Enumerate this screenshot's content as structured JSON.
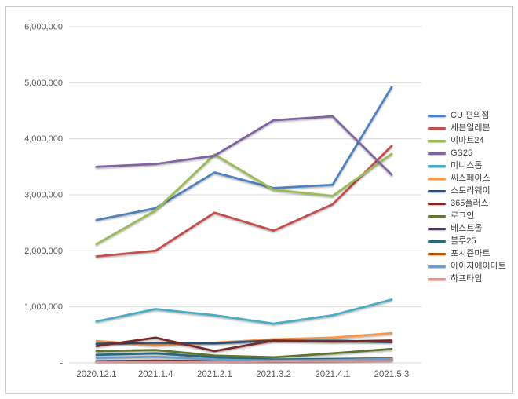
{
  "chart_data": {
    "type": "line",
    "title": "",
    "xlabel": "",
    "ylabel": "",
    "x_categories": [
      "2020.12.1",
      "2021.1.4",
      "2021.2.1",
      "2021.3.2",
      "2021.4.1",
      "2021.5.3"
    ],
    "y_tick_labels": [
      "-",
      "1,000,000",
      "2,000,000",
      "3,000,000",
      "4,000,000",
      "5,000,000",
      "6,000,000"
    ],
    "ylim": [
      0,
      6000000
    ],
    "y_tick_step": 1000000,
    "grid": "horizontal",
    "legend_position": "right",
    "series": [
      {
        "name": "CU 편의점",
        "color": "#4F81BD",
        "values": [
          2550000,
          2760000,
          3400000,
          3120000,
          3180000,
          4920000
        ]
      },
      {
        "name": "세븐일레븐",
        "color": "#C0504D",
        "values": [
          1900000,
          2000000,
          2680000,
          2360000,
          2830000,
          3870000
        ]
      },
      {
        "name": "이마트24",
        "color": "#9BBB59",
        "values": [
          2120000,
          2720000,
          3720000,
          3090000,
          2980000,
          3730000
        ]
      },
      {
        "name": "GS25",
        "color": "#8064A2",
        "values": [
          3500000,
          3550000,
          3700000,
          4330000,
          4400000,
          3360000
        ]
      },
      {
        "name": "미니스톱",
        "color": "#4BACC6",
        "values": [
          740000,
          960000,
          850000,
          700000,
          850000,
          1130000
        ]
      },
      {
        "name": "씨스페이스",
        "color": "#F79646",
        "values": [
          390000,
          320000,
          360000,
          420000,
          450000,
          530000
        ]
      },
      {
        "name": "스토리웨이",
        "color": "#2C4D75",
        "values": [
          340000,
          360000,
          350000,
          400000,
          400000,
          370000
        ]
      },
      {
        "name": "365플러스",
        "color": "#772C2A",
        "values": [
          300000,
          450000,
          210000,
          400000,
          380000,
          400000
        ]
      },
      {
        "name": "로그인",
        "color": "#5F7530",
        "values": [
          210000,
          230000,
          130000,
          100000,
          170000,
          250000
        ]
      },
      {
        "name": "베스트올",
        "color": "#4D3B62",
        "values": [
          30000,
          40000,
          30000,
          45000,
          50000,
          60000
        ]
      },
      {
        "name": "블루25",
        "color": "#276A7C",
        "values": [
          145000,
          170000,
          100000,
          60000,
          70000,
          80000
        ]
      },
      {
        "name": "포시즌마트",
        "color": "#B65708",
        "values": [
          20000,
          30000,
          25000,
          35000,
          40000,
          90000
        ]
      },
      {
        "name": "아이지에이마트",
        "color": "#729ACA",
        "values": [
          90000,
          110000,
          60000,
          40000,
          50000,
          70000
        ]
      },
      {
        "name": "하프타임",
        "color": "#D99694",
        "values": [
          10000,
          20000,
          15000,
          30000,
          30000,
          40000
        ]
      }
    ]
  },
  "colors": {
    "grid": "#d9d9d9",
    "axis_text": "#595959",
    "legend_text": "#404040",
    "frame_border": "#c9c9c9",
    "background": "#ffffff"
  }
}
